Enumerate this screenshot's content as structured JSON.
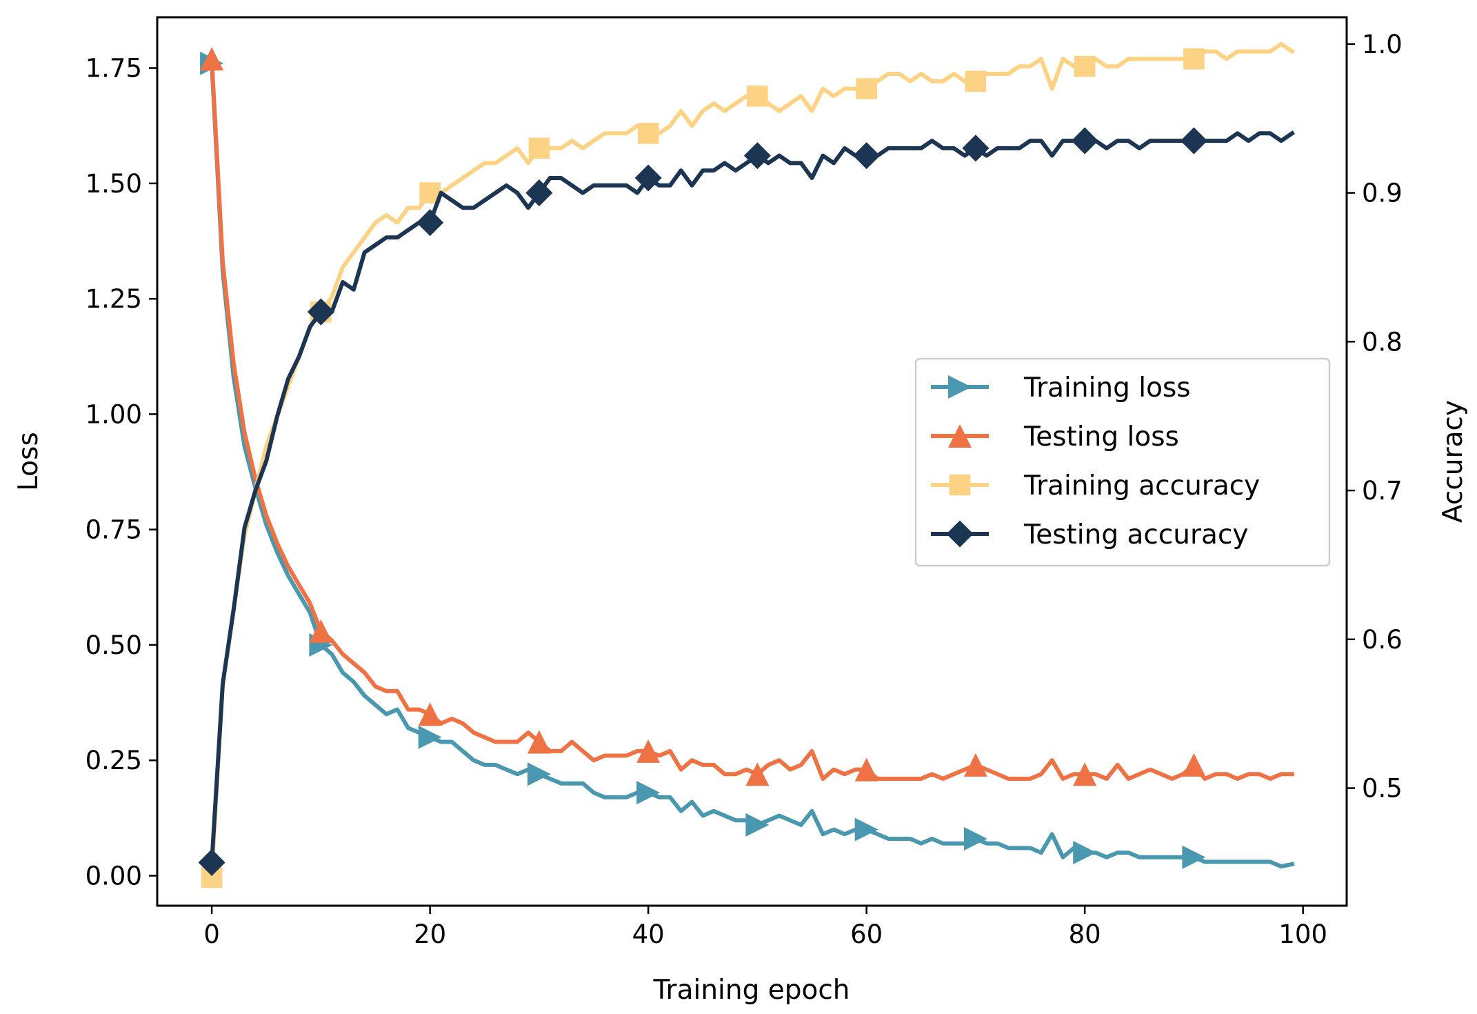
{
  "chart_data": {
    "type": "line",
    "title": "",
    "xlabel": "Training epoch",
    "ylabel": "Loss",
    "y2label": "Accuracy",
    "xlim": [
      -5,
      104
    ],
    "ylim": [
      -0.065,
      1.86
    ],
    "y2lim": [
      0.421,
      1.018
    ],
    "x_ticks": [
      0,
      20,
      40,
      60,
      80,
      100
    ],
    "x_tick_labels": [
      "0",
      "20",
      "40",
      "60",
      "80",
      "100"
    ],
    "y_ticks": [
      0.0,
      0.25,
      0.5,
      0.75,
      1.0,
      1.25,
      1.5,
      1.75
    ],
    "y_tick_labels": [
      "0.00",
      "0.25",
      "0.50",
      "0.75",
      "1.00",
      "1.25",
      "1.50",
      "1.75"
    ],
    "y2_ticks": [
      0.5,
      0.6,
      0.7,
      0.8,
      0.9,
      1.0
    ],
    "y2_tick_labels": [
      "0.5",
      "0.6",
      "0.7",
      "0.8",
      "0.9",
      "1.0"
    ],
    "grid": false,
    "legend_position": "center-right",
    "series": [
      {
        "name": "Training loss",
        "axis": "left",
        "color": "#4a98b0",
        "marker": "triangle-right",
        "marker_every": 10,
        "x_start": 0,
        "values": [
          1.76,
          1.31,
          1.08,
          0.93,
          0.84,
          0.76,
          0.7,
          0.65,
          0.61,
          0.57,
          0.5,
          0.48,
          0.44,
          0.42,
          0.39,
          0.37,
          0.35,
          0.36,
          0.32,
          0.31,
          0.3,
          0.29,
          0.29,
          0.27,
          0.25,
          0.24,
          0.24,
          0.23,
          0.22,
          0.23,
          0.22,
          0.21,
          0.2,
          0.2,
          0.2,
          0.18,
          0.17,
          0.17,
          0.17,
          0.18,
          0.18,
          0.17,
          0.17,
          0.14,
          0.16,
          0.13,
          0.14,
          0.13,
          0.12,
          0.12,
          0.11,
          0.12,
          0.13,
          0.12,
          0.11,
          0.14,
          0.09,
          0.1,
          0.09,
          0.1,
          0.1,
          0.09,
          0.08,
          0.08,
          0.08,
          0.07,
          0.08,
          0.07,
          0.07,
          0.07,
          0.08,
          0.07,
          0.07,
          0.06,
          0.06,
          0.06,
          0.05,
          0.09,
          0.04,
          0.06,
          0.05,
          0.05,
          0.04,
          0.05,
          0.05,
          0.04,
          0.04,
          0.04,
          0.04,
          0.04,
          0.04,
          0.03,
          0.03,
          0.03,
          0.03,
          0.03,
          0.03,
          0.03,
          0.02,
          0.025
        ]
      },
      {
        "name": "Testing loss",
        "axis": "left",
        "color": "#ef7244",
        "marker": "triangle-up",
        "marker_every": 10,
        "x_start": 0,
        "values": [
          1.77,
          1.33,
          1.11,
          0.96,
          0.86,
          0.78,
          0.72,
          0.67,
          0.63,
          0.59,
          0.53,
          0.51,
          0.48,
          0.46,
          0.44,
          0.41,
          0.4,
          0.4,
          0.36,
          0.36,
          0.35,
          0.33,
          0.34,
          0.33,
          0.31,
          0.3,
          0.29,
          0.29,
          0.29,
          0.31,
          0.29,
          0.27,
          0.27,
          0.29,
          0.27,
          0.25,
          0.26,
          0.26,
          0.26,
          0.27,
          0.27,
          0.26,
          0.27,
          0.23,
          0.25,
          0.24,
          0.24,
          0.22,
          0.22,
          0.23,
          0.22,
          0.24,
          0.25,
          0.23,
          0.24,
          0.27,
          0.21,
          0.23,
          0.22,
          0.23,
          0.23,
          0.21,
          0.21,
          0.21,
          0.21,
          0.21,
          0.22,
          0.21,
          0.22,
          0.23,
          0.24,
          0.23,
          0.22,
          0.21,
          0.21,
          0.21,
          0.22,
          0.25,
          0.21,
          0.22,
          0.22,
          0.22,
          0.21,
          0.24,
          0.21,
          0.22,
          0.23,
          0.22,
          0.21,
          0.22,
          0.24,
          0.21,
          0.22,
          0.22,
          0.21,
          0.22,
          0.22,
          0.21,
          0.22,
          0.22
        ]
      },
      {
        "name": "Training accuracy",
        "axis": "right",
        "color": "#fcd385",
        "marker": "square",
        "marker_every": 10,
        "x_start": 0,
        "values": [
          0.44,
          0.57,
          0.62,
          0.67,
          0.7,
          0.73,
          0.75,
          0.77,
          0.79,
          0.81,
          0.82,
          0.83,
          0.85,
          0.86,
          0.87,
          0.88,
          0.885,
          0.88,
          0.89,
          0.89,
          0.9,
          0.9,
          0.905,
          0.91,
          0.915,
          0.92,
          0.92,
          0.925,
          0.93,
          0.92,
          0.93,
          0.93,
          0.93,
          0.935,
          0.93,
          0.935,
          0.94,
          0.94,
          0.94,
          0.945,
          0.94,
          0.94,
          0.945,
          0.955,
          0.945,
          0.955,
          0.96,
          0.955,
          0.96,
          0.965,
          0.965,
          0.96,
          0.955,
          0.96,
          0.965,
          0.955,
          0.97,
          0.965,
          0.97,
          0.97,
          0.97,
          0.975,
          0.98,
          0.98,
          0.975,
          0.98,
          0.975,
          0.975,
          0.98,
          0.975,
          0.975,
          0.98,
          0.98,
          0.98,
          0.985,
          0.985,
          0.99,
          0.97,
          0.99,
          0.985,
          0.985,
          0.99,
          0.985,
          0.985,
          0.99,
          0.99,
          0.99,
          0.99,
          0.99,
          0.99,
          0.99,
          0.995,
          0.995,
          0.99,
          0.995,
          0.995,
          0.995,
          0.995,
          1.0,
          0.995
        ]
      },
      {
        "name": "Testing accuracy",
        "axis": "right",
        "color": "#1c3553",
        "marker": "diamond",
        "marker_every": 10,
        "x_start": 0,
        "values": [
          0.45,
          0.57,
          0.62,
          0.675,
          0.7,
          0.72,
          0.75,
          0.775,
          0.79,
          0.81,
          0.82,
          0.82,
          0.84,
          0.835,
          0.86,
          0.865,
          0.87,
          0.87,
          0.875,
          0.88,
          0.88,
          0.9,
          0.895,
          0.89,
          0.89,
          0.895,
          0.9,
          0.905,
          0.9,
          0.89,
          0.9,
          0.91,
          0.91,
          0.905,
          0.9,
          0.905,
          0.905,
          0.905,
          0.905,
          0.9,
          0.91,
          0.905,
          0.905,
          0.915,
          0.905,
          0.915,
          0.915,
          0.92,
          0.915,
          0.92,
          0.925,
          0.92,
          0.925,
          0.92,
          0.92,
          0.91,
          0.925,
          0.92,
          0.93,
          0.925,
          0.925,
          0.925,
          0.93,
          0.93,
          0.93,
          0.93,
          0.935,
          0.93,
          0.93,
          0.925,
          0.93,
          0.925,
          0.93,
          0.93,
          0.93,
          0.935,
          0.935,
          0.925,
          0.935,
          0.935,
          0.935,
          0.935,
          0.93,
          0.935,
          0.935,
          0.93,
          0.935,
          0.935,
          0.935,
          0.935,
          0.935,
          0.935,
          0.935,
          0.935,
          0.94,
          0.935,
          0.94,
          0.94,
          0.935,
          0.94
        ]
      }
    ]
  }
}
